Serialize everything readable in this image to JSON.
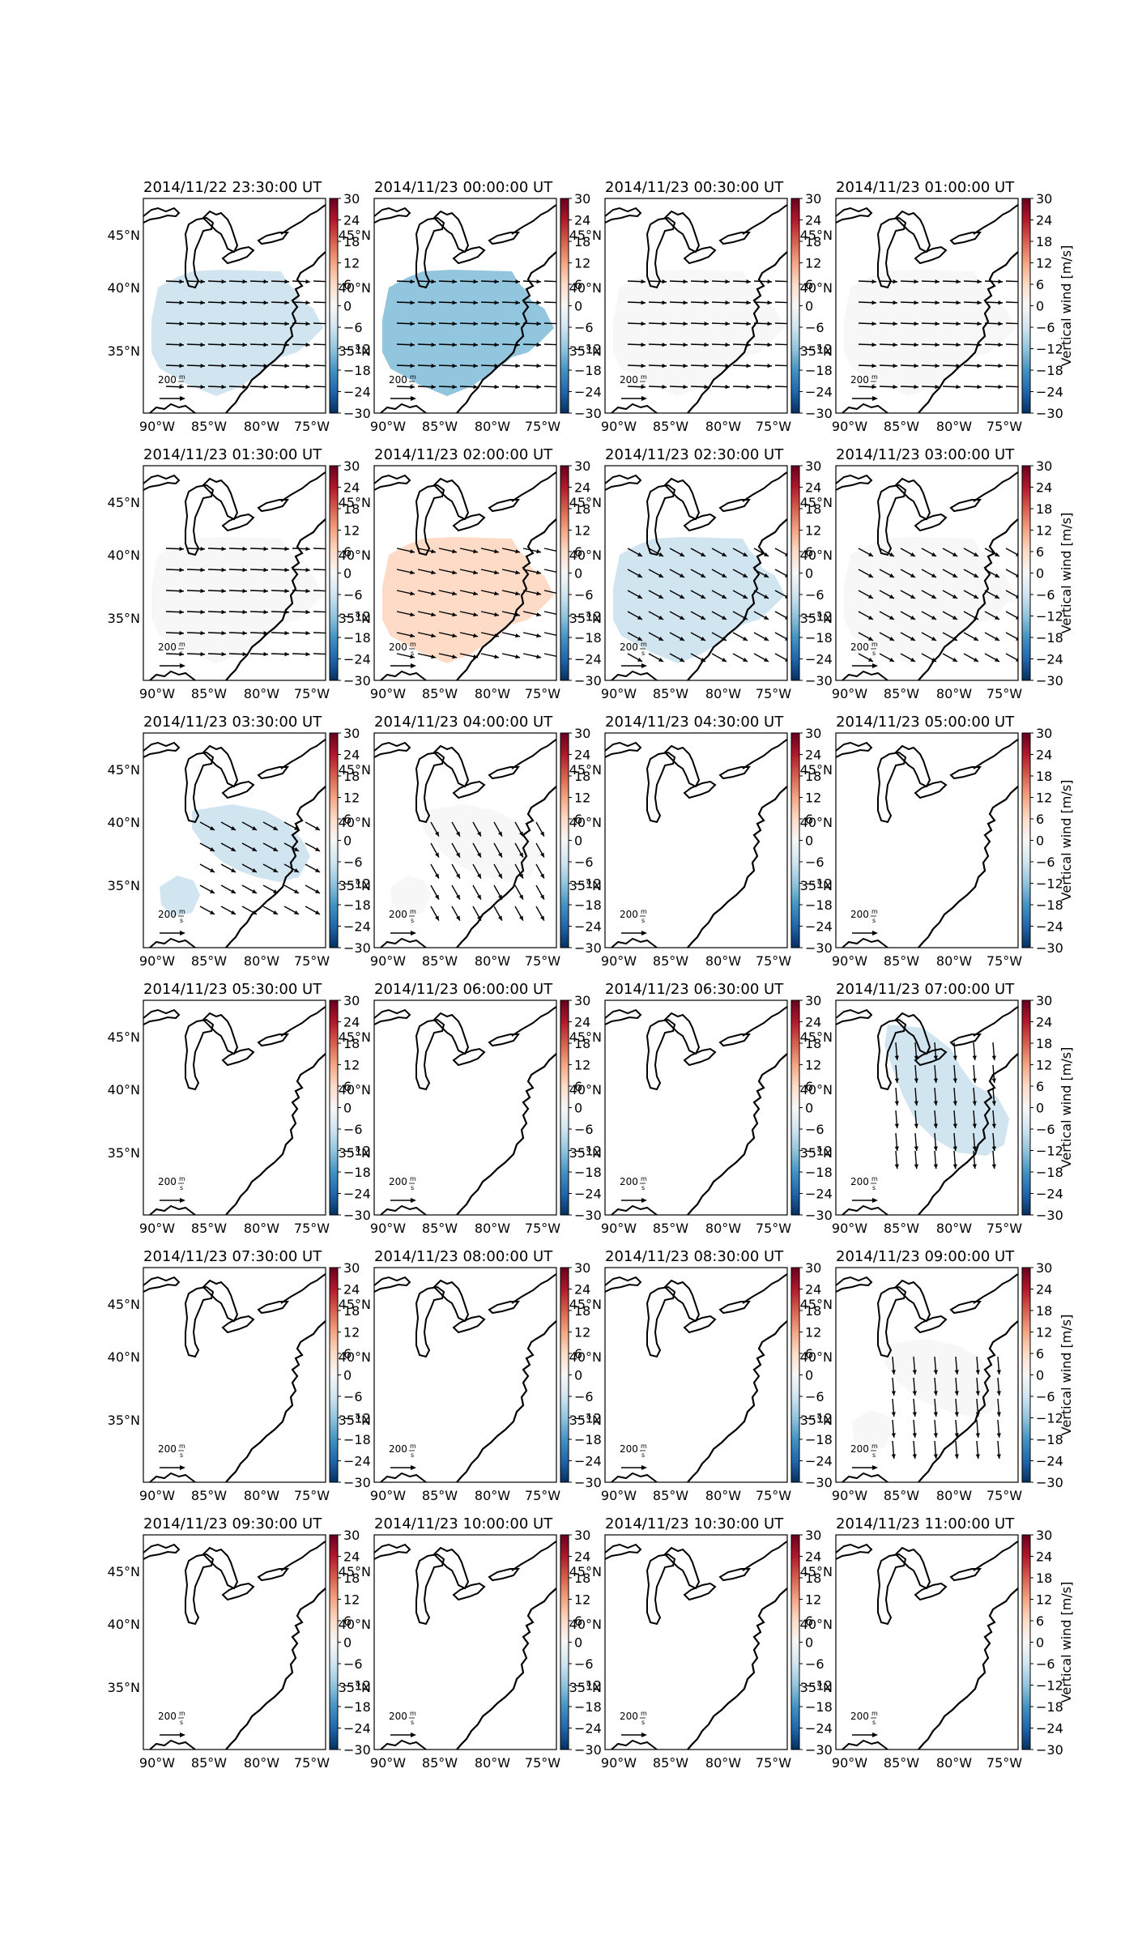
{
  "figure": {
    "colorbar": {
      "ticks": [
        "30",
        "24",
        "18",
        "12",
        "6",
        "0",
        "−6",
        "−12",
        "−18",
        "−24",
        "−30"
      ],
      "label": "Vertical wind [m/s]",
      "colors": [
        "#67001f",
        "#b2182b",
        "#d6604d",
        "#f4a582",
        "#fddbc7",
        "#f7f7f7",
        "#d1e5f0",
        "#92c5de",
        "#4393c3",
        "#2166ac",
        "#053061"
      ]
    },
    "axes": {
      "lon_ticks": [
        "90°W",
        "85°W",
        "80°W",
        "75°W"
      ],
      "lat_ticks": [
        "45°N",
        "40°N",
        "35°N"
      ]
    },
    "scale_arrow": {
      "value": "200",
      "unit_num": "m",
      "unit_den": "s"
    },
    "panels": [
      {
        "title": "2014/11/22 23:30:00 UT",
        "vertical_wind": -6,
        "region": "wide",
        "arrows": "east"
      },
      {
        "title": "2014/11/23 00:00:00 UT",
        "vertical_wind": -9,
        "region": "wide",
        "arrows": "east"
      },
      {
        "title": "2014/11/23 00:30:00 UT",
        "vertical_wind": -1,
        "region": "wide",
        "arrows": "east"
      },
      {
        "title": "2014/11/23 01:00:00 UT",
        "vertical_wind": 2,
        "region": "wide",
        "arrows": "east"
      },
      {
        "title": "2014/11/23 01:30:00 UT",
        "vertical_wind": 3,
        "region": "wide",
        "arrows": "east"
      },
      {
        "title": "2014/11/23 02:00:00 UT",
        "vertical_wind": 9,
        "region": "wide",
        "arrows": "east-southeast"
      },
      {
        "title": "2014/11/23 02:30:00 UT",
        "vertical_wind": -4,
        "region": "wide",
        "arrows": "southeast"
      },
      {
        "title": "2014/11/23 03:00:00 UT",
        "vertical_wind": 3,
        "region": "wide",
        "arrows": "southeast"
      },
      {
        "title": "2014/11/23 03:30:00 UT",
        "vertical_wind": -4,
        "region": "blobs",
        "arrows": "southeast"
      },
      {
        "title": "2014/11/23 04:00:00 UT",
        "vertical_wind": 3,
        "region": "blobs",
        "arrows": "south-southeast"
      },
      {
        "title": "2014/11/23 04:30:00 UT",
        "vertical_wind": 0,
        "region": "none",
        "arrows": "none"
      },
      {
        "title": "2014/11/23 05:00:00 UT",
        "vertical_wind": 0,
        "region": "none",
        "arrows": "none"
      },
      {
        "title": "2014/11/23 05:30:00 UT",
        "vertical_wind": 0,
        "region": "none",
        "arrows": "none"
      },
      {
        "title": "2014/11/23 06:00:00 UT",
        "vertical_wind": 0,
        "region": "none",
        "arrows": "none"
      },
      {
        "title": "2014/11/23 06:30:00 UT",
        "vertical_wind": 0,
        "region": "none",
        "arrows": "none"
      },
      {
        "title": "2014/11/23 07:00:00 UT",
        "vertical_wind": -3,
        "region": "northern",
        "arrows": "south"
      },
      {
        "title": "2014/11/23 07:30:00 UT",
        "vertical_wind": 0,
        "region": "none",
        "arrows": "none"
      },
      {
        "title": "2014/11/23 08:00:00 UT",
        "vertical_wind": 0,
        "region": "none",
        "arrows": "none"
      },
      {
        "title": "2014/11/23 08:30:00 UT",
        "vertical_wind": 0,
        "region": "none",
        "arrows": "none"
      },
      {
        "title": "2014/11/23 09:00:00 UT",
        "vertical_wind": 3,
        "region": "blobs",
        "arrows": "south"
      },
      {
        "title": "2014/11/23 09:30:00 UT",
        "vertical_wind": 0,
        "region": "none",
        "arrows": "none"
      },
      {
        "title": "2014/11/23 10:00:00 UT",
        "vertical_wind": 0,
        "region": "none",
        "arrows": "none"
      },
      {
        "title": "2014/11/23 10:30:00 UT",
        "vertical_wind": 0,
        "region": "none",
        "arrows": "none"
      },
      {
        "title": "2014/11/23 11:00:00 UT",
        "vertical_wind": 0,
        "region": "none",
        "arrows": "none"
      }
    ]
  }
}
